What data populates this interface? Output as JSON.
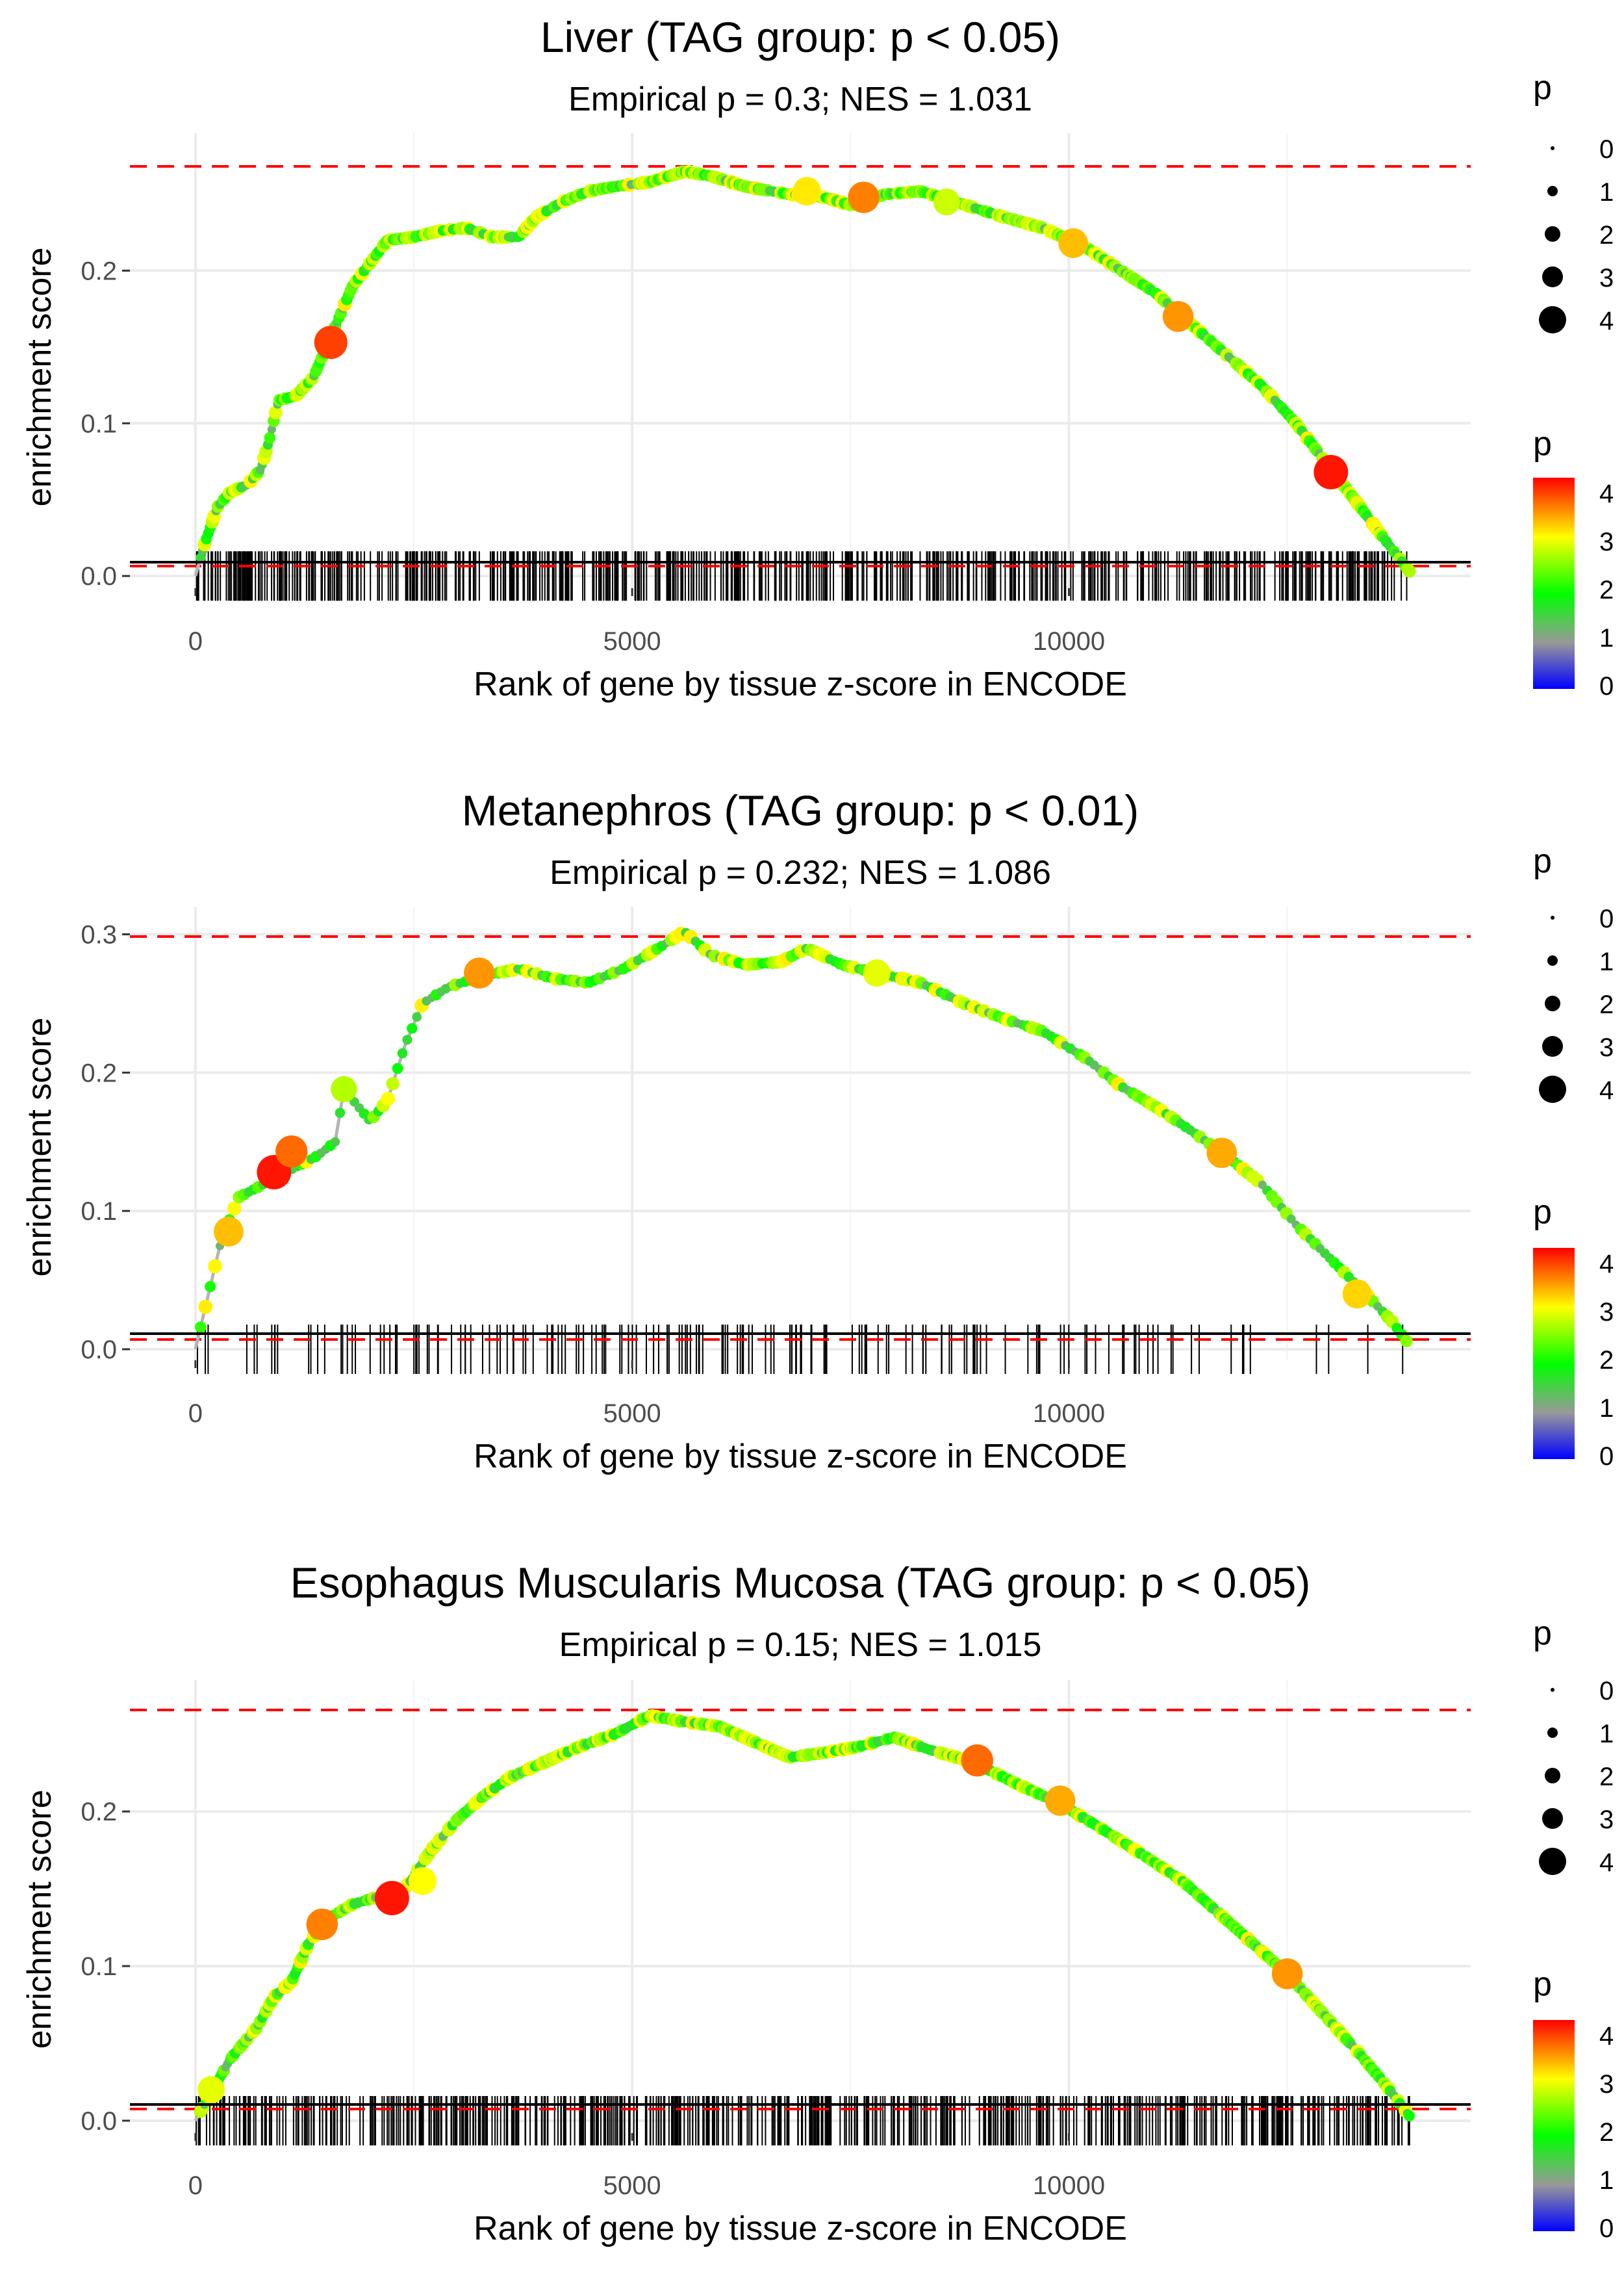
{
  "chart_data": [
    {
      "type": "line",
      "title": "Liver (TAG group: p < 0.05)",
      "subtitle": "Empirical p = 0.3; NES = 1.031",
      "xlabel": "Rank of gene by tissue z-score in ENCODE",
      "ylabel": "enrichment score",
      "xlim": [
        -750,
        14600
      ],
      "ylim": [
        -0.008,
        0.29
      ],
      "xticks": [
        0,
        5000,
        10000
      ],
      "xtick_labels": [
        "0",
        "5000",
        "10000"
      ],
      "yticks": [
        0.0,
        0.1,
        0.2
      ],
      "ytick_labels": [
        "0.0",
        "0.1",
        "0.2"
      ],
      "ref_lines": {
        "max_es": 0.268,
        "min_es": -0.003,
        "zero": 0
      },
      "n_genes": 13900,
      "curve": [
        [
          0,
          0
        ],
        [
          100,
          0.02
        ],
        [
          250,
          0.045
        ],
        [
          400,
          0.055
        ],
        [
          600,
          0.06
        ],
        [
          750,
          0.07
        ],
        [
          850,
          0.09
        ],
        [
          950,
          0.115
        ],
        [
          1150,
          0.118
        ],
        [
          1350,
          0.13
        ],
        [
          1500,
          0.15
        ],
        [
          1650,
          0.17
        ],
        [
          1800,
          0.19
        ],
        [
          2000,
          0.205
        ],
        [
          2200,
          0.22
        ],
        [
          2500,
          0.222
        ],
        [
          2800,
          0.226
        ],
        [
          3100,
          0.228
        ],
        [
          3400,
          0.222
        ],
        [
          3700,
          0.222
        ],
        [
          3900,
          0.235
        ],
        [
          4200,
          0.245
        ],
        [
          4500,
          0.252
        ],
        [
          4800,
          0.255
        ],
        [
          5200,
          0.258
        ],
        [
          5600,
          0.265
        ],
        [
          5900,
          0.262
        ],
        [
          6300,
          0.255
        ],
        [
          6800,
          0.25
        ],
        [
          7200,
          0.248
        ],
        [
          7500,
          0.243
        ],
        [
          7900,
          0.25
        ],
        [
          8300,
          0.252
        ],
        [
          8700,
          0.245
        ],
        [
          9200,
          0.236
        ],
        [
          9700,
          0.228
        ],
        [
          10200,
          0.215
        ],
        [
          10600,
          0.2
        ],
        [
          11000,
          0.185
        ],
        [
          11400,
          0.165
        ],
        [
          11800,
          0.145
        ],
        [
          12200,
          0.125
        ],
        [
          12600,
          0.1
        ],
        [
          13000,
          0.07
        ],
        [
          13300,
          0.048
        ],
        [
          13600,
          0.025
        ],
        [
          13900,
          0.003
        ]
      ],
      "highlights": [
        [
          1550,
          0.153,
          3.9
        ],
        [
          7650,
          0.248,
          3.6
        ],
        [
          10050,
          0.218,
          3.3
        ],
        [
          11250,
          0.17,
          3.5
        ],
        [
          13000,
          0.068,
          4.1
        ],
        [
          7000,
          0.252,
          3.1
        ],
        [
          8600,
          0.245,
          2.8
        ]
      ],
      "legend_size": {
        "title": "p",
        "labels": [
          "0",
          "1",
          "2",
          "3",
          "4"
        ]
      },
      "legend_color": {
        "title": "p",
        "labels": [
          "4",
          "3",
          "2",
          "1",
          "0"
        ],
        "stops": [
          "#0000ff",
          "#999999",
          "#00ff00",
          "#ffff00",
          "#ff0000"
        ]
      }
    },
    {
      "type": "line",
      "title": "Metanephros (TAG group: p < 0.01)",
      "subtitle": "Empirical p = 0.232; NES = 1.086",
      "xlabel": "Rank of gene by tissue z-score in ENCODE",
      "ylabel": "enrichment score",
      "xlim": [
        -750,
        14600
      ],
      "ylim": [
        -0.008,
        0.32
      ],
      "xticks": [
        0,
        5000,
        10000
      ],
      "xtick_labels": [
        "0",
        "5000",
        "10000"
      ],
      "yticks": [
        0.0,
        0.1,
        0.2,
        0.3
      ],
      "ytick_labels": [
        "0.0",
        "0.1",
        "0.2",
        "0.3"
      ],
      "ref_lines": {
        "max_es": 0.302,
        "min_es": -0.005,
        "zero": 0
      },
      "n_genes": 13900,
      "curve": [
        [
          0,
          0
        ],
        [
          150,
          0.04
        ],
        [
          300,
          0.08
        ],
        [
          500,
          0.11
        ],
        [
          800,
          0.12
        ],
        [
          1100,
          0.13
        ],
        [
          1400,
          0.14
        ],
        [
          1600,
          0.15
        ],
        [
          1700,
          0.188
        ],
        [
          2000,
          0.165
        ],
        [
          2200,
          0.18
        ],
        [
          2400,
          0.22
        ],
        [
          2600,
          0.25
        ],
        [
          2900,
          0.262
        ],
        [
          3300,
          0.27
        ],
        [
          3700,
          0.275
        ],
        [
          4100,
          0.268
        ],
        [
          4500,
          0.265
        ],
        [
          4900,
          0.275
        ],
        [
          5300,
          0.29
        ],
        [
          5600,
          0.302
        ],
        [
          5900,
          0.285
        ],
        [
          6300,
          0.278
        ],
        [
          6700,
          0.28
        ],
        [
          7000,
          0.29
        ],
        [
          7400,
          0.278
        ],
        [
          7800,
          0.272
        ],
        [
          8300,
          0.265
        ],
        [
          8800,
          0.25
        ],
        [
          9300,
          0.238
        ],
        [
          9700,
          0.23
        ],
        [
          10200,
          0.21
        ],
        [
          10600,
          0.19
        ],
        [
          11000,
          0.175
        ],
        [
          11400,
          0.158
        ],
        [
          11800,
          0.14
        ],
        [
          12200,
          0.12
        ],
        [
          12600,
          0.09
        ],
        [
          13000,
          0.065
        ],
        [
          13400,
          0.04
        ],
        [
          13700,
          0.02
        ],
        [
          13900,
          0.003
        ]
      ],
      "highlights": [
        [
          380,
          0.085,
          3.3
        ],
        [
          900,
          0.128,
          4.1
        ],
        [
          1100,
          0.143,
          3.7
        ],
        [
          1700,
          0.188,
          2.7
        ],
        [
          3250,
          0.272,
          3.5
        ],
        [
          7800,
          0.272,
          2.9
        ],
        [
          11750,
          0.142,
          3.4
        ],
        [
          13300,
          0.04,
          3.2
        ]
      ],
      "legend_size": {
        "title": "p",
        "labels": [
          "0",
          "1",
          "2",
          "3",
          "4"
        ]
      },
      "legend_color": {
        "title": "p",
        "labels": [
          "4",
          "3",
          "2",
          "1",
          "0"
        ],
        "stops": [
          "#0000ff",
          "#999999",
          "#00ff00",
          "#ffff00",
          "#ff0000"
        ]
      }
    },
    {
      "type": "line",
      "title": "Esophagus Muscularis Mucosa (TAG group: p < 0.05)",
      "subtitle": "Empirical p = 0.15; NES = 1.015",
      "xlabel": "Rank of gene by tissue z-score in ENCODE",
      "ylabel": "enrichment score",
      "xlim": [
        -750,
        14600
      ],
      "ylim": [
        -0.008,
        0.285
      ],
      "xticks": [
        0,
        5000,
        10000
      ],
      "xtick_labels": [
        "0",
        "5000",
        "10000"
      ],
      "yticks": [
        0.0,
        0.1,
        0.2
      ],
      "ytick_labels": [
        "0.0",
        "0.1",
        "0.2"
      ],
      "ref_lines": {
        "max_es": 0.263,
        "min_es": -0.003,
        "zero": 0
      },
      "n_genes": 13900,
      "curve": [
        [
          0,
          0
        ],
        [
          200,
          0.02
        ],
        [
          400,
          0.04
        ],
        [
          700,
          0.06
        ],
        [
          900,
          0.08
        ],
        [
          1100,
          0.09
        ],
        [
          1300,
          0.115
        ],
        [
          1500,
          0.13
        ],
        [
          1800,
          0.14
        ],
        [
          2100,
          0.145
        ],
        [
          2400,
          0.15
        ],
        [
          2700,
          0.175
        ],
        [
          3000,
          0.195
        ],
        [
          3300,
          0.21
        ],
        [
          3600,
          0.222
        ],
        [
          4000,
          0.232
        ],
        [
          4400,
          0.242
        ],
        [
          4800,
          0.25
        ],
        [
          5200,
          0.262
        ],
        [
          5600,
          0.258
        ],
        [
          6000,
          0.255
        ],
        [
          6400,
          0.245
        ],
        [
          6800,
          0.235
        ],
        [
          7200,
          0.238
        ],
        [
          7600,
          0.242
        ],
        [
          8000,
          0.248
        ],
        [
          8400,
          0.24
        ],
        [
          8900,
          0.232
        ],
        [
          9400,
          0.218
        ],
        [
          9900,
          0.205
        ],
        [
          10400,
          0.188
        ],
        [
          10900,
          0.17
        ],
        [
          11300,
          0.155
        ],
        [
          11700,
          0.135
        ],
        [
          12100,
          0.115
        ],
        [
          12500,
          0.095
        ],
        [
          12900,
          0.07
        ],
        [
          13300,
          0.045
        ],
        [
          13600,
          0.025
        ],
        [
          13900,
          0.003
        ]
      ],
      "highlights": [
        [
          1450,
          0.127,
          3.6
        ],
        [
          2250,
          0.144,
          4.1
        ],
        [
          8950,
          0.233,
          3.7
        ],
        [
          9900,
          0.207,
          3.4
        ],
        [
          12500,
          0.095,
          3.5
        ],
        [
          180,
          0.02,
          2.9
        ],
        [
          2600,
          0.155,
          3.0
        ]
      ],
      "legend_size": {
        "title": "p",
        "labels": [
          "0",
          "1",
          "2",
          "3",
          "4"
        ]
      },
      "legend_color": {
        "title": "p",
        "labels": [
          "4",
          "3",
          "2",
          "1",
          "0"
        ],
        "stops": [
          "#0000ff",
          "#999999",
          "#00ff00",
          "#ffff00",
          "#ff0000"
        ]
      }
    }
  ]
}
